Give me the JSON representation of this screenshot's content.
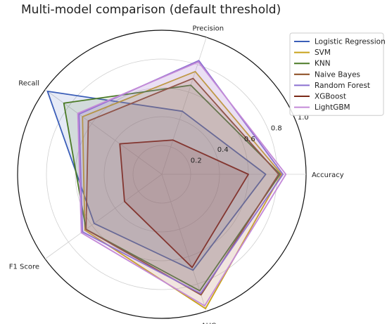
{
  "chart_data": {
    "type": "radar",
    "title": "Multi-model comparison (default threshold)",
    "axes": [
      "Accuracy",
      "Precision",
      "Recall",
      "F1 Score",
      "AUC"
    ],
    "rlim": [
      0,
      1.0
    ],
    "rticks": [
      "0.2",
      "0.4",
      "0.6",
      "0.8",
      "1.0"
    ],
    "grid": true,
    "legend_position": "top-right",
    "series": [
      {
        "name": "Logistic Regression",
        "color": "#3b5eb8",
        "values": [
          0.72,
          0.46,
          0.98,
          0.58,
          0.7
        ]
      },
      {
        "name": "SVM",
        "color": "#c8a21a",
        "values": [
          0.83,
          0.75,
          0.68,
          0.66,
          0.98
        ]
      },
      {
        "name": "KNN",
        "color": "#4a7a25",
        "values": [
          0.82,
          0.65,
          0.84,
          0.65,
          0.85
        ]
      },
      {
        "name": "Naive Bayes",
        "color": "#8a4a1e",
        "values": [
          0.81,
          0.7,
          0.63,
          0.65,
          0.88
        ]
      },
      {
        "name": "Random Forest",
        "color": "#8a6fd0",
        "values": [
          0.84,
          0.83,
          0.71,
          0.68,
          0.87
        ]
      },
      {
        "name": "XGBoost",
        "color": "#7a2a18",
        "values": [
          0.6,
          0.25,
          0.36,
          0.32,
          0.68
        ]
      },
      {
        "name": "LightGBM",
        "color": "#c48ad8",
        "values": [
          0.86,
          0.82,
          0.72,
          0.69,
          0.96
        ]
      }
    ]
  }
}
